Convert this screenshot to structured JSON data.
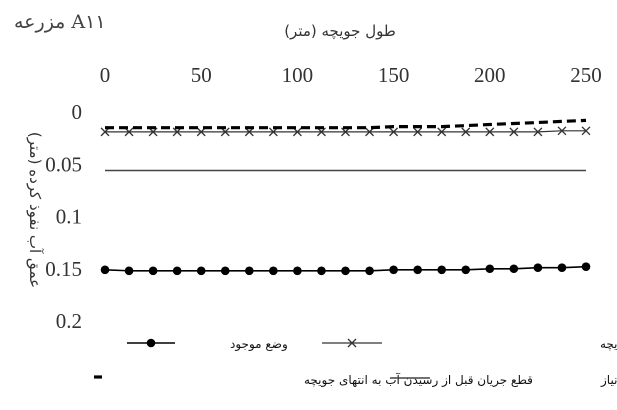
{
  "chart_data": {
    "type": "line",
    "title": "مزرعه A۱۱",
    "xlabel": "طول جویچه (متر)",
    "ylabel": "عمق آب نفوذ کرده (متر)",
    "xlim": [
      0,
      250
    ],
    "ylim": [
      0,
      0.2
    ],
    "y_inverted": true,
    "x_axis_position": "top",
    "grid": false,
    "legend_position": "bottom",
    "x_ticks": [
      0,
      50,
      100,
      150,
      200,
      250
    ],
    "y_ticks": [
      "0",
      "0.05",
      "0.1",
      "0.15",
      "0.2"
    ],
    "x": [
      0,
      12.5,
      25,
      37.5,
      50,
      62.5,
      75,
      87.5,
      100,
      112.5,
      125,
      137.5,
      150,
      162.5,
      175,
      187.5,
      200,
      212.5,
      225,
      237.5,
      250
    ],
    "series": [
      {
        "name": "وضع موجود",
        "style": "solid-dots",
        "color": "#000000",
        "values": [
          0.151,
          0.152,
          0.152,
          0.152,
          0.152,
          0.152,
          0.152,
          0.152,
          0.152,
          0.152,
          0.152,
          0.152,
          0.151,
          0.151,
          0.151,
          0.151,
          0.15,
          0.15,
          0.149,
          0.149,
          0.148
        ]
      },
      {
        "name": "قطع جریان با رسیدن آب به انتهای جویچه",
        "style": "x-marks",
        "color": "#333333",
        "values": [
          0.019,
          0.019,
          0.019,
          0.019,
          0.019,
          0.019,
          0.019,
          0.019,
          0.019,
          0.019,
          0.019,
          0.019,
          0.019,
          0.019,
          0.019,
          0.019,
          0.019,
          0.019,
          0.019,
          0.018,
          0.018
        ]
      },
      {
        "name": "قطع جریان قبل از رسیدن آب به انتهای جویچه",
        "style": "dashed",
        "color": "#000000",
        "values": [
          0.015,
          0.015,
          0.015,
          0.015,
          0.015,
          0.015,
          0.015,
          0.015,
          0.015,
          0.015,
          0.015,
          0.015,
          0.014,
          0.014,
          0.014,
          0.013,
          0.012,
          0.011,
          0.01,
          0.009,
          0.008
        ]
      },
      {
        "name": "عمق آب مورد نیاز",
        "style": "solid",
        "color": "#444444",
        "values": [
          0.056,
          0.056,
          0.056,
          0.056,
          0.056,
          0.056,
          0.056,
          0.056,
          0.056,
          0.056,
          0.056,
          0.056,
          0.056,
          0.056,
          0.056,
          0.056,
          0.056,
          0.056,
          0.056,
          0.056,
          0.056
        ]
      }
    ]
  }
}
